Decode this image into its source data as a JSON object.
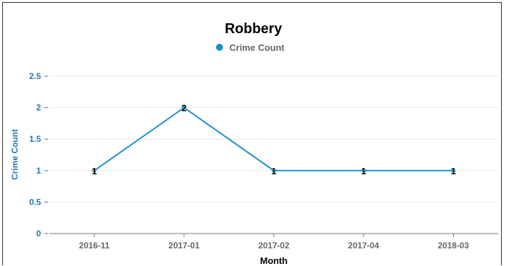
{
  "chart_data": {
    "type": "line",
    "title": "Robbery",
    "xlabel": "Month",
    "ylabel": "Crime Count",
    "categories": [
      "2016-11",
      "2017-01",
      "2017-02",
      "2017-04",
      "2018-03"
    ],
    "series": [
      {
        "name": "Crime Count",
        "values": [
          1,
          2,
          1,
          1,
          1
        ],
        "color": "#1a8fd1"
      }
    ],
    "ylim": [
      0,
      2.5
    ],
    "yticks": [
      "0",
      "0.5",
      "1",
      "1.5",
      "2",
      "2.5"
    ],
    "data_labels": [
      "1",
      "2",
      "1",
      "1",
      "1"
    ],
    "grid": true,
    "legend": "top-center"
  }
}
